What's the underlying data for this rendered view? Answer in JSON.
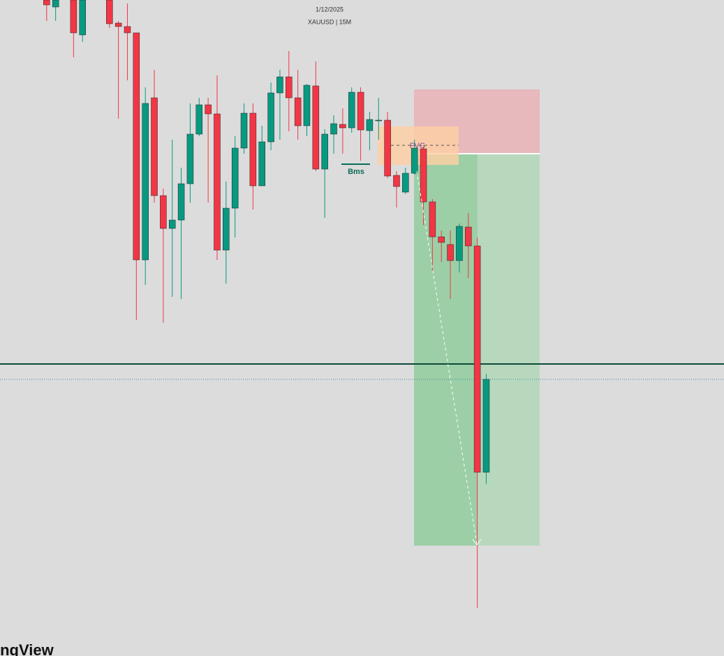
{
  "chart_data": {
    "type": "candlestick",
    "title": "1/12/2025",
    "subtitle": "XAUUSD | 15M",
    "annotations": {
      "fvg": "FVG",
      "bms": "Bms"
    },
    "watermark": "ingView",
    "up_color": "#089981",
    "down_color": "#f23645",
    "xlim": [
      -5.2,
      75.5
    ],
    "ylim": [
      0,
      939
    ],
    "x": [
      0,
      1,
      3,
      4,
      7,
      8,
      9,
      10,
      11,
      12,
      13,
      14,
      15,
      16,
      17,
      18,
      19,
      20,
      21,
      22,
      23,
      24,
      25,
      26,
      27,
      28,
      29,
      30,
      31,
      32,
      33,
      34,
      35,
      36,
      37,
      38,
      39,
      40,
      41,
      42,
      43,
      44,
      45,
      46,
      47,
      48,
      49
    ],
    "open": [
      939,
      929,
      939,
      889,
      939,
      906,
      901,
      892,
      567,
      799,
      659,
      612,
      624,
      676,
      747,
      789,
      776,
      581,
      641,
      727,
      777,
      673,
      736,
      806,
      829,
      799,
      759,
      816,
      697,
      747,
      761,
      756,
      807,
      752,
      767,
      767,
      688,
      664,
      691,
      726,
      650,
      600,
      589,
      566,
      614,
      587,
      263
    ],
    "high": [
      939,
      939,
      939,
      939,
      939,
      909,
      934,
      892,
      814,
      839,
      669,
      739,
      699,
      791,
      799,
      799,
      831,
      679,
      744,
      791,
      791,
      759,
      821,
      839,
      866,
      839,
      819,
      851,
      754,
      774,
      784,
      814,
      814,
      779,
      799,
      779,
      694,
      699,
      739,
      729,
      654,
      609,
      609,
      619,
      634,
      599,
      404
    ],
    "low": [
      909,
      909,
      857,
      879,
      899,
      769,
      824,
      481,
      531,
      649,
      477,
      514,
      511,
      649,
      744,
      649,
      567,
      533,
      599,
      719,
      639,
      673,
      724,
      739,
      751,
      739,
      744,
      694,
      627,
      719,
      719,
      749,
      709,
      724,
      739,
      684,
      642,
      661,
      689,
      617,
      551,
      564,
      511,
      549,
      541,
      69,
      246
    ],
    "close": [
      932,
      939,
      892,
      939,
      905,
      901,
      892,
      567,
      791,
      659,
      612,
      624,
      676,
      747,
      789,
      776,
      581,
      641,
      727,
      777,
      673,
      736,
      806,
      829,
      799,
      759,
      817,
      697,
      747,
      762,
      756,
      807,
      753,
      768,
      767,
      687,
      672,
      691,
      727,
      650,
      600,
      592,
      566,
      615,
      587,
      263,
      396
    ]
  }
}
